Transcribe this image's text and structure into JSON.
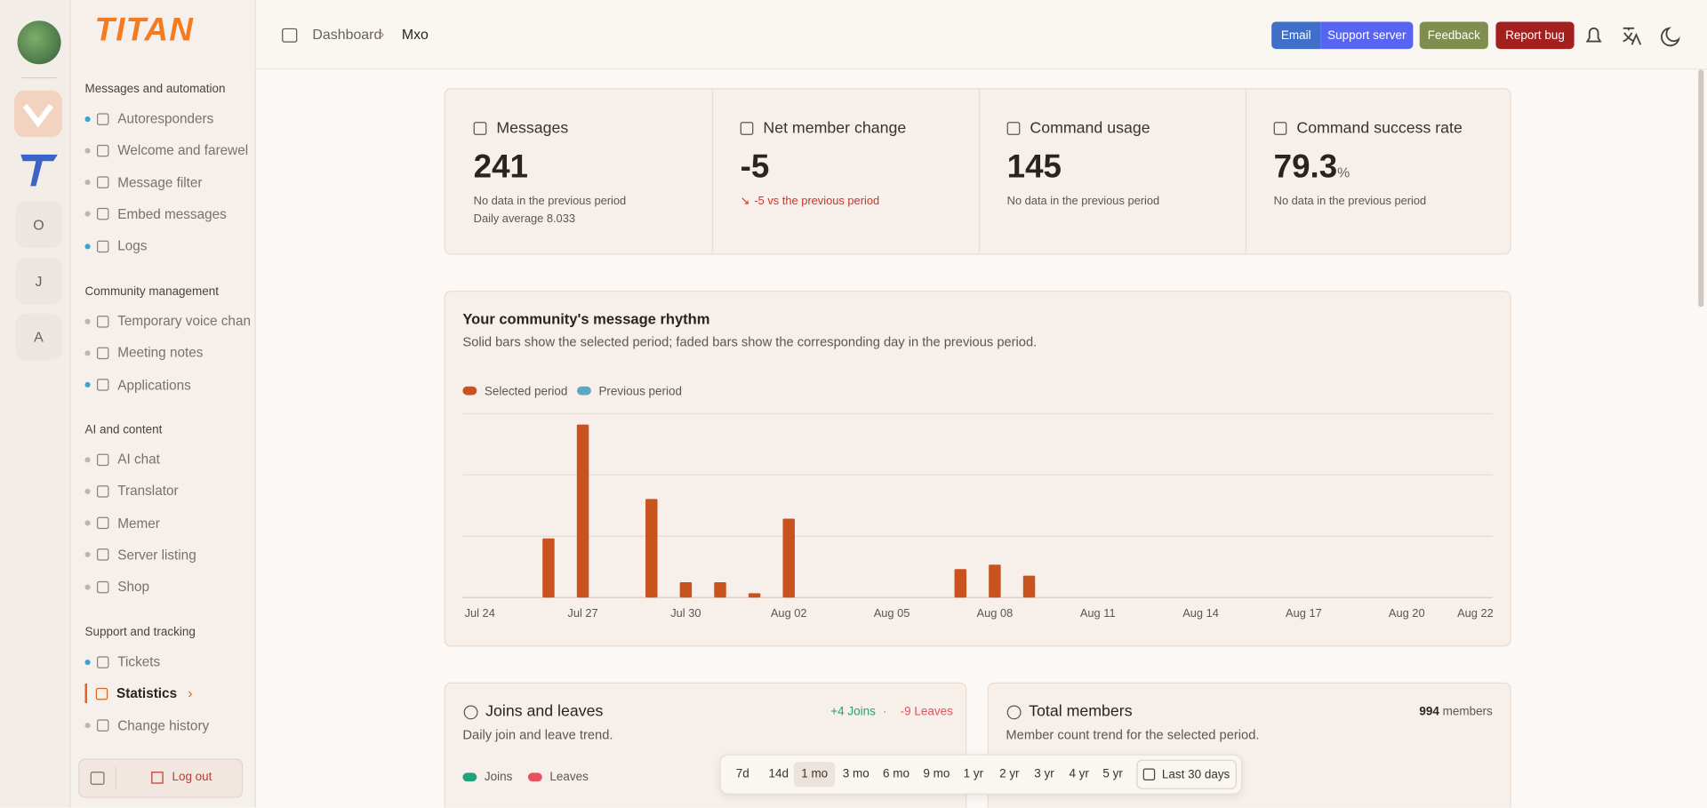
{
  "header": {
    "breadcrumb": [
      "Dashboard",
      "Mxo"
    ],
    "buttons": [
      {
        "label": "Email",
        "color": "#3f6fc9"
      },
      {
        "label": "Support server",
        "color": "#5865f2"
      },
      {
        "label": "Feedback",
        "color": "#7f8d4f"
      },
      {
        "label": "Report bug",
        "color": "#a3201e"
      }
    ]
  },
  "servers": [
    "O",
    "J",
    "A"
  ],
  "sidebar": {
    "logo": "TITAN",
    "sections": [
      {
        "title": "Messages and automation",
        "items": [
          {
            "label": "Autoresponders",
            "dot": "#3ea3c9"
          },
          {
            "label": "Welcome and farewel",
            "dot": "#bdb6b0"
          },
          {
            "label": "Message filter",
            "dot": "#bdb6b0"
          },
          {
            "label": "Embed messages",
            "dot": "#bdb6b0"
          },
          {
            "label": "Logs",
            "dot": "#3ea3c9"
          }
        ]
      },
      {
        "title": "Community management",
        "items": [
          {
            "label": "Temporary voice chan",
            "dot": "#bdb6b0"
          },
          {
            "label": "Meeting notes",
            "dot": "#bdb6b0"
          },
          {
            "label": "Applications",
            "dot": "#3ea3c9"
          }
        ]
      },
      {
        "title": "AI and content",
        "items": [
          {
            "label": "AI chat",
            "dot": "#bdb6b0"
          },
          {
            "label": "Translator",
            "dot": "#bdb6b0"
          },
          {
            "label": "Memer",
            "dot": "#bdb6b0"
          },
          {
            "label": "Server listing",
            "dot": "#bdb6b0"
          },
          {
            "label": "Shop",
            "dot": "#bdb6b0"
          }
        ]
      },
      {
        "title": "Support and tracking",
        "items": [
          {
            "label": "Tickets",
            "dot": "#3ea3c9"
          },
          {
            "label": "Statistics",
            "active": true
          },
          {
            "label": "Change history",
            "dot": "#bdb6b0"
          }
        ]
      }
    ],
    "logout": "Log out"
  },
  "stats": [
    {
      "label": "Messages",
      "value": "241",
      "notes": [
        "No data in the previous period",
        "Daily average 8.033"
      ]
    },
    {
      "label": "Net member change",
      "value": "-5",
      "trend": "-5 vs the previous period"
    },
    {
      "label": "Command usage",
      "value": "145",
      "notes": [
        "No data in the previous period"
      ]
    },
    {
      "label": "Command success rate",
      "value": "79.3",
      "unit": "%",
      "notes": [
        "No data in the previous period"
      ]
    }
  ],
  "chart_data": {
    "type": "bar",
    "title": "Your community's message rhythm",
    "subtitle": "Solid bars show the selected period; faded bars show the corresponding day in the previous period.",
    "categories": [
      "Jul 24",
      null,
      null,
      "Jul 27",
      null,
      null,
      "Jul 30",
      null,
      null,
      "Aug 02",
      null,
      null,
      "Aug 05",
      null,
      null,
      "Aug 08",
      null,
      null,
      "Aug 11",
      null,
      null,
      "Aug 14",
      null,
      null,
      "Aug 17",
      null,
      null,
      "Aug 20",
      null,
      "Aug 22"
    ],
    "series": [
      {
        "name": "Selected period",
        "color": "#c9531f",
        "values": [
          0,
          0,
          27,
          79,
          0,
          45,
          7,
          7,
          2,
          36,
          0,
          0,
          0,
          0,
          13,
          15,
          10,
          0,
          0,
          0,
          0,
          0,
          0,
          0,
          0,
          0,
          0,
          0,
          0,
          0
        ]
      },
      {
        "name": "Previous period",
        "color": "#5ea7c2"
      }
    ],
    "ylim": [
      0,
      84
    ],
    "grid": true
  },
  "joins": {
    "title": "Joins and leaves",
    "joins": "+4 Joins",
    "sep": "·",
    "leaves": "-9 Leaves",
    "subtitle": "Daily join and leave trend.",
    "legend": [
      {
        "name": "Joins",
        "color": "#1fa37b"
      },
      {
        "name": "Leaves",
        "color": "#e2525f"
      }
    ]
  },
  "members": {
    "title": "Total members",
    "count": "994",
    "unit": "members",
    "subtitle": "Member count trend for the selected period."
  },
  "range": {
    "options": [
      "7d",
      "14d",
      "1 mo",
      "3 mo",
      "6 mo",
      "9 mo",
      "1 yr",
      "2 yr",
      "3 yr",
      "4 yr",
      "5 yr"
    ],
    "selected": 2,
    "custom": "Last 30 days"
  }
}
